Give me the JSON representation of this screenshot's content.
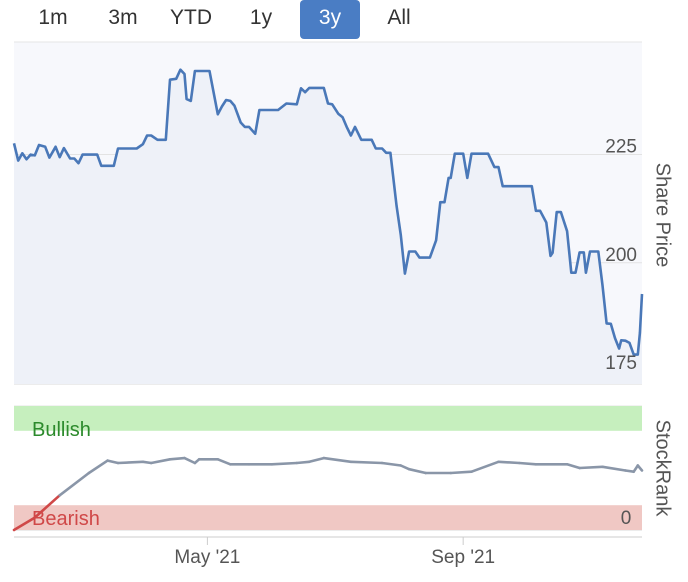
{
  "range_selector": {
    "buttons": [
      {
        "label": "1m",
        "active": false
      },
      {
        "label": "3m",
        "active": false
      },
      {
        "label": "YTD",
        "active": false
      },
      {
        "label": "1y",
        "active": false
      },
      {
        "label": "3y",
        "active": true
      },
      {
        "label": "All",
        "active": false
      }
    ]
  },
  "colors": {
    "price_line": "#4a78b8",
    "rank_line": "#8a96a8",
    "bullish_band": "#c6efbe",
    "bearish_band": "#f0c8c4",
    "bullish_text": "#2c8a2c",
    "bearish_text": "#d04848",
    "plot_background": "#f7f8fc",
    "active_button": "#4a7dc4"
  },
  "chart_data": [
    {
      "type": "line",
      "ylabel": "Share Price",
      "ylim": [
        172,
        251
      ],
      "yticks": [
        175,
        200,
        225
      ],
      "x_domain": [
        "2021-01-28",
        "2021-11-26"
      ],
      "xticks": [
        {
          "date": "2021-05-01",
          "label": "May '21"
        },
        {
          "date": "2021-09-01",
          "label": "Sep '21"
        }
      ],
      "series": [
        {
          "points": [
            [
              "2021-01-28",
              227.6
            ],
            [
              "2021-01-30",
              223.6
            ],
            [
              "2021-02-01",
              225.3
            ],
            [
              "2021-02-03",
              223.9
            ],
            [
              "2021-02-05",
              225.0
            ],
            [
              "2021-02-07",
              224.8
            ],
            [
              "2021-02-09",
              227.2
            ],
            [
              "2021-02-12",
              226.8
            ],
            [
              "2021-02-14",
              224.3
            ],
            [
              "2021-02-17",
              226.8
            ],
            [
              "2021-02-19",
              224.4
            ],
            [
              "2021-02-21",
              226.5
            ],
            [
              "2021-02-24",
              224.1
            ],
            [
              "2021-02-26",
              224.1
            ],
            [
              "2021-02-28",
              223.0
            ],
            [
              "2021-03-02",
              225.0
            ],
            [
              "2021-03-09",
              225.0
            ],
            [
              "2021-03-11",
              222.4
            ],
            [
              "2021-03-17",
              222.4
            ],
            [
              "2021-03-19",
              226.4
            ],
            [
              "2021-03-28",
              226.4
            ],
            [
              "2021-03-31",
              227.4
            ],
            [
              "2021-04-02",
              229.4
            ],
            [
              "2021-04-04",
              229.4
            ],
            [
              "2021-04-07",
              228.4
            ],
            [
              "2021-04-11",
              228.4
            ],
            [
              "2021-04-13",
              242.3
            ],
            [
              "2021-04-16",
              242.5
            ],
            [
              "2021-04-18",
              244.6
            ],
            [
              "2021-04-20",
              243.6
            ],
            [
              "2021-04-21",
              237.8
            ],
            [
              "2021-04-23",
              237.4
            ],
            [
              "2021-04-25",
              244.3
            ],
            [
              "2021-05-02",
              244.3
            ],
            [
              "2021-05-06",
              234.3
            ],
            [
              "2021-05-08",
              236.1
            ],
            [
              "2021-05-10",
              237.6
            ],
            [
              "2021-05-12",
              237.4
            ],
            [
              "2021-05-14",
              236.3
            ],
            [
              "2021-05-17",
              232.4
            ],
            [
              "2021-05-19",
              231.4
            ],
            [
              "2021-05-21",
              231.4
            ],
            [
              "2021-05-24",
              229.8
            ],
            [
              "2021-05-26",
              235.3
            ],
            [
              "2021-06-01",
              235.3
            ],
            [
              "2021-06-04",
              235.3
            ],
            [
              "2021-06-08",
              236.8
            ],
            [
              "2021-06-13",
              236.6
            ],
            [
              "2021-06-15",
              240.3
            ],
            [
              "2021-06-17",
              239.4
            ],
            [
              "2021-06-19",
              240.4
            ],
            [
              "2021-06-26",
              240.4
            ],
            [
              "2021-06-28",
              236.8
            ],
            [
              "2021-06-30",
              236.6
            ],
            [
              "2021-07-03",
              234.4
            ],
            [
              "2021-07-05",
              233.6
            ],
            [
              "2021-07-07",
              231.4
            ],
            [
              "2021-07-09",
              229.4
            ],
            [
              "2021-07-11",
              231.4
            ],
            [
              "2021-07-14",
              228.4
            ],
            [
              "2021-07-19",
              228.4
            ],
            [
              "2021-07-21",
              226.4
            ],
            [
              "2021-07-24",
              226.4
            ],
            [
              "2021-07-26",
              225.4
            ],
            [
              "2021-07-28",
              225.4
            ],
            [
              "2021-07-31",
              213.1
            ],
            [
              "2021-08-02",
              206.4
            ],
            [
              "2021-08-04",
              197.5
            ],
            [
              "2021-08-06",
              202.6
            ],
            [
              "2021-08-09",
              202.6
            ],
            [
              "2021-08-11",
              201.2
            ],
            [
              "2021-08-14",
              201.2
            ],
            [
              "2021-08-16",
              201.2
            ],
            [
              "2021-08-19",
              205.2
            ],
            [
              "2021-08-21",
              214.0
            ],
            [
              "2021-08-23",
              214.0
            ],
            [
              "2021-08-25",
              219.6
            ],
            [
              "2021-08-26",
              219.6
            ],
            [
              "2021-08-28",
              225.2
            ],
            [
              "2021-09-01",
              225.2
            ],
            [
              "2021-09-03",
              219.6
            ],
            [
              "2021-09-05",
              225.2
            ],
            [
              "2021-09-13",
              225.2
            ],
            [
              "2021-09-16",
              222.1
            ],
            [
              "2021-09-18",
              222.1
            ],
            [
              "2021-09-20",
              217.7
            ],
            [
              "2021-10-04",
              217.7
            ],
            [
              "2021-10-06",
              212.0
            ],
            [
              "2021-10-08",
              212.0
            ],
            [
              "2021-10-11",
              209.3
            ],
            [
              "2021-10-13",
              201.6
            ],
            [
              "2021-10-14",
              202.3
            ],
            [
              "2021-10-16",
              211.7
            ],
            [
              "2021-10-18",
              211.7
            ],
            [
              "2021-10-21",
              207.3
            ],
            [
              "2021-10-23",
              197.7
            ],
            [
              "2021-10-25",
              197.7
            ],
            [
              "2021-10-27",
              202.4
            ],
            [
              "2021-10-29",
              202.4
            ],
            [
              "2021-10-30",
              197.7
            ],
            [
              "2021-11-01",
              202.6
            ],
            [
              "2021-11-05",
              202.6
            ],
            [
              "2021-11-07",
              194.8
            ],
            [
              "2021-11-09",
              186.0
            ],
            [
              "2021-11-11",
              185.9
            ],
            [
              "2021-11-13",
              182.6
            ],
            [
              "2021-11-15",
              180.2
            ],
            [
              "2021-11-16",
              182.1
            ],
            [
              "2021-11-18",
              182.0
            ],
            [
              "2021-11-20",
              181.5
            ],
            [
              "2021-11-22",
              178.8
            ],
            [
              "2021-11-24",
              178.8
            ],
            [
              "2021-11-25",
              183.8
            ],
            [
              "2021-11-26",
              192.8
            ]
          ]
        }
      ]
    },
    {
      "type": "line",
      "ylabel": "StockRank",
      "ylim": [
        0,
        100
      ],
      "yticks": [
        0
      ],
      "bands": [
        {
          "label": "Bullish",
          "from": 80,
          "to": 100
        },
        {
          "label": "Bearish",
          "from": 0,
          "to": 20
        }
      ],
      "series": [
        {
          "points": [
            [
              "2021-01-28",
              0
            ],
            [
              "2021-02-07",
              10
            ],
            [
              "2021-02-19",
              28
            ],
            [
              "2021-03-05",
              46
            ],
            [
              "2021-03-14",
              56
            ],
            [
              "2021-03-19",
              54
            ],
            [
              "2021-03-31",
              55
            ],
            [
              "2021-04-04",
              54
            ],
            [
              "2021-04-13",
              57
            ],
            [
              "2021-04-20",
              58
            ],
            [
              "2021-04-25",
              54
            ],
            [
              "2021-04-27",
              57
            ],
            [
              "2021-05-06",
              57
            ],
            [
              "2021-05-12",
              53
            ],
            [
              "2021-05-21",
              53
            ],
            [
              "2021-06-01",
              53
            ],
            [
              "2021-06-13",
              54
            ],
            [
              "2021-06-19",
              55
            ],
            [
              "2021-06-26",
              58
            ],
            [
              "2021-07-09",
              55
            ],
            [
              "2021-07-24",
              54
            ],
            [
              "2021-08-02",
              52
            ],
            [
              "2021-08-06",
              49
            ],
            [
              "2021-08-14",
              46
            ],
            [
              "2021-08-26",
              46
            ],
            [
              "2021-09-05",
              47
            ],
            [
              "2021-09-18",
              55
            ],
            [
              "2021-09-28",
              54
            ],
            [
              "2021-10-06",
              53
            ],
            [
              "2021-10-21",
              53
            ],
            [
              "2021-10-27",
              50
            ],
            [
              "2021-11-07",
              51
            ],
            [
              "2021-11-18",
              48
            ],
            [
              "2021-11-22",
              47
            ],
            [
              "2021-11-24",
              52
            ],
            [
              "2021-11-26",
              48
            ]
          ]
        }
      ]
    }
  ]
}
